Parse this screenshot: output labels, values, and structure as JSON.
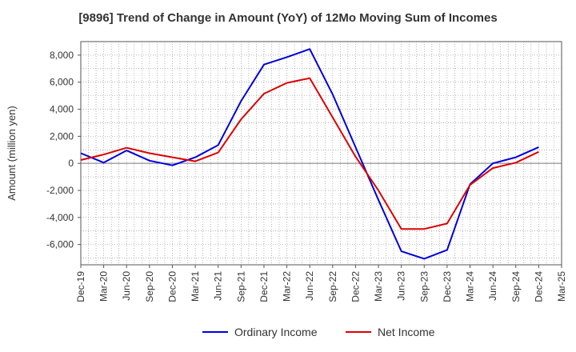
{
  "chart_data": {
    "type": "line",
    "title": "[9896]  Trend of Change in Amount (YoY) of 12Mo Moving Sum of Incomes",
    "xlabel": "",
    "ylabel": "Amount (million yen)",
    "ylim": [
      -7500,
      9000
    ],
    "y_ticks": [
      -6000,
      -4000,
      -2000,
      0,
      2000,
      4000,
      6000,
      8000
    ],
    "y_tick_labels": [
      "-6,000",
      "-4,000",
      "-2,000",
      "0",
      "2,000",
      "4,000",
      "6,000",
      "8,000"
    ],
    "x_tick_labels": [
      "Dec-19",
      "Mar-20",
      "Jun-20",
      "Sep-20",
      "Dec-20",
      "Mar-21",
      "Jun-21",
      "Sep-21",
      "Dec-21",
      "Mar-22",
      "Jun-22",
      "Sep-22",
      "Dec-22",
      "Mar-23",
      "Jun-23",
      "Sep-23",
      "Dec-23",
      "Mar-24",
      "Jun-24",
      "Sep-24",
      "Dec-24",
      "Mar-25"
    ],
    "grid": true,
    "legend_position": "bottom",
    "series": [
      {
        "name": "Ordinary Income",
        "color": "#0000dd",
        "values": [
          750,
          50,
          950,
          200,
          -150,
          450,
          1350,
          4600,
          7300,
          7850,
          8450,
          5100,
          1200,
          -2700,
          -6500,
          -7050,
          -6400,
          -1550,
          0,
          450,
          1200
        ]
      },
      {
        "name": "Net Income",
        "color": "#dd0000",
        "values": [
          250,
          650,
          1150,
          750,
          450,
          150,
          800,
          3250,
          5150,
          5950,
          6300,
          3400,
          500,
          -2000,
          -4850,
          -4850,
          -4450,
          -1600,
          -350,
          50,
          850
        ]
      }
    ]
  }
}
